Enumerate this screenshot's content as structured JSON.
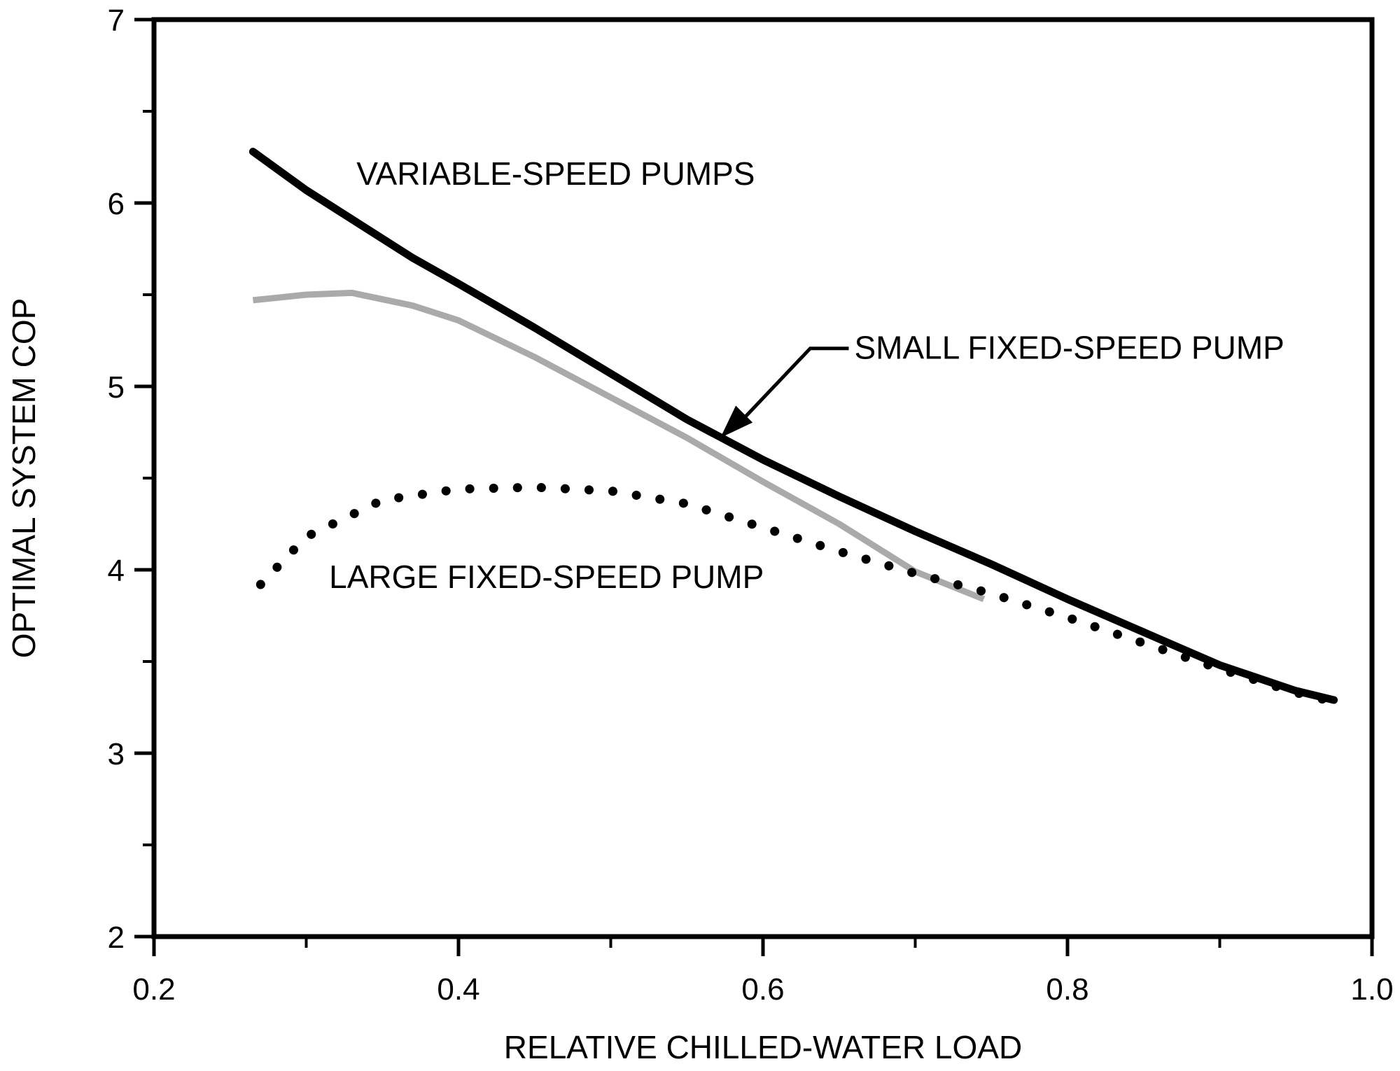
{
  "chart_data": {
    "type": "line",
    "title": "",
    "xlabel": "RELATIVE CHILLED-WATER LOAD",
    "ylabel": "OPTIMAL SYSTEM COP",
    "xlim": [
      0.2,
      1.0
    ],
    "ylim": [
      2,
      7
    ],
    "xticks": [
      0.2,
      0.4,
      0.6,
      0.8,
      1.0
    ],
    "xtick_labels": [
      "0.2",
      "0.4",
      "0.6",
      "0.8",
      "1.0"
    ],
    "yticks": [
      2,
      3,
      4,
      5,
      6,
      7
    ],
    "ytick_labels": [
      "2",
      "3",
      "4",
      "5",
      "6",
      "7"
    ],
    "grid": false,
    "legend": "none",
    "series": [
      {
        "name": "VARIABLE-SPEED PUMPS",
        "style": "solid",
        "color": "#000000",
        "x": [
          0.265,
          0.3,
          0.37,
          0.4,
          0.45,
          0.5,
          0.55,
          0.6,
          0.65,
          0.7,
          0.75,
          0.8,
          0.85,
          0.9,
          0.95,
          0.975
        ],
        "y": [
          6.28,
          6.07,
          5.7,
          5.56,
          5.32,
          5.07,
          4.82,
          4.6,
          4.4,
          4.21,
          4.03,
          3.84,
          3.66,
          3.48,
          3.34,
          3.29
        ]
      },
      {
        "name": "SMALL FIXED-SPEED PUMP",
        "style": "solid",
        "color": "#aaaaaa",
        "x": [
          0.265,
          0.3,
          0.33,
          0.37,
          0.4,
          0.45,
          0.5,
          0.55,
          0.6,
          0.65,
          0.7,
          0.745
        ],
        "y": [
          5.47,
          5.5,
          5.51,
          5.44,
          5.36,
          5.16,
          4.94,
          4.72,
          4.48,
          4.25,
          3.99,
          3.84
        ]
      },
      {
        "name": "LARGE FIXED-SPEED PUMP",
        "style": "dotted",
        "color": "#000000",
        "x": [
          0.27,
          0.3,
          0.35,
          0.4,
          0.45,
          0.5,
          0.55,
          0.6,
          0.65,
          0.7,
          0.75,
          0.8,
          0.85,
          0.9,
          0.95,
          0.975
        ],
        "y": [
          3.92,
          4.18,
          4.38,
          4.44,
          4.45,
          4.43,
          4.36,
          4.23,
          4.1,
          3.98,
          3.87,
          3.74,
          3.6,
          3.46,
          3.33,
          3.28
        ]
      }
    ],
    "annotations": [
      {
        "text": "VARIABLE-SPEED PUMPS",
        "x": 0.333,
        "y": 6.1
      },
      {
        "text": "SMALL FIXED-SPEED PUMP",
        "x": 0.66,
        "y": 5.15,
        "arrow_to": {
          "x": 0.572,
          "y": 4.72
        }
      },
      {
        "text": "LARGE FIXED-SPEED PUMP",
        "x": 0.315,
        "y": 3.9
      }
    ]
  }
}
